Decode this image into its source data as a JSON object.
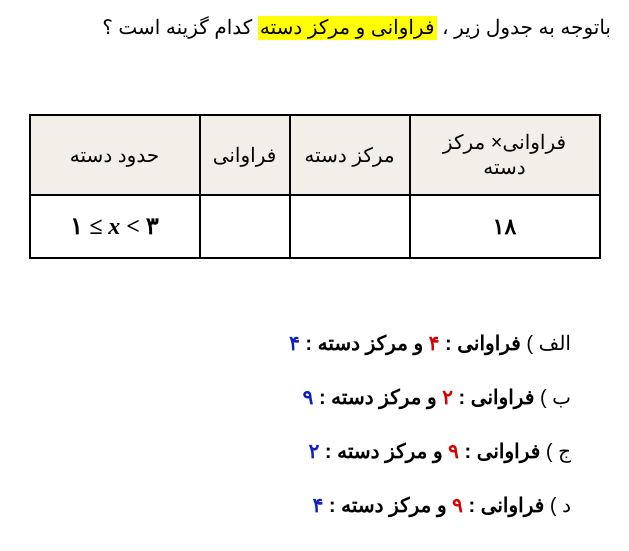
{
  "question": {
    "prefix": "باتوجه به جدول زیر ، ",
    "highlight": "فراوانی و مرکز دسته",
    "suffix": " کدام گزینه است ؟"
  },
  "table": {
    "headers": {
      "col1": "حدود دسته",
      "col2": "فراوانی",
      "col3": "مرکز دسته",
      "col4": "فراوانی× مرکز دسته"
    },
    "row": {
      "range_display": "۱ ≤ x < ۳",
      "frequency": "",
      "class_center": "",
      "product": "۱۸"
    },
    "styling": {
      "header_bg": "#f2efe8",
      "border_color": "#000000",
      "cell_bg": "#ffffff",
      "header_fontsize": 20,
      "cell_fontsize": 22
    }
  },
  "options_common": {
    "freq_label": "فراوانی : ",
    "and_word": " و ",
    "center_label": "مرکز دسته : "
  },
  "options": {
    "a": {
      "prefix": "الف )  ",
      "freq_val": "۴",
      "center_val": "۴"
    },
    "b": {
      "prefix": "ب )  ",
      "freq_val": "۲",
      "center_val": "۹"
    },
    "c": {
      "prefix": "ج )  ",
      "freq_val": "۹",
      "center_val": "۲"
    },
    "d": {
      "prefix": "د )  ",
      "freq_val": "۹",
      "center_val": "۴"
    }
  },
  "colors": {
    "highlight_bg": "#ffff00",
    "red": "#d90000",
    "blue": "#1020c0",
    "black": "#000000"
  }
}
